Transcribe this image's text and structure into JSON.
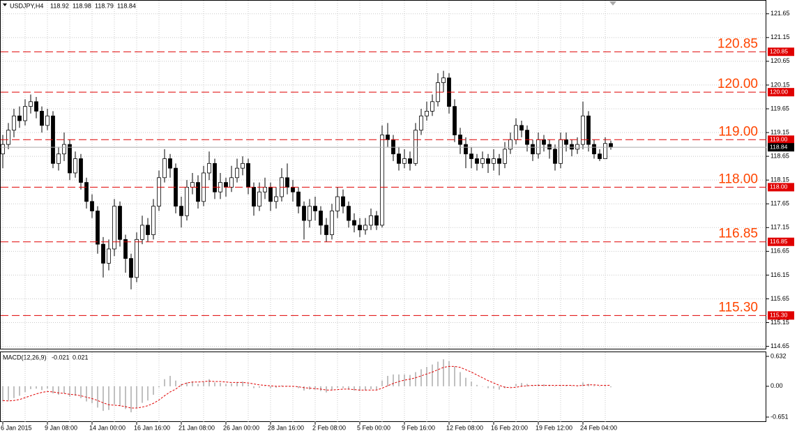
{
  "chart_data": {
    "type": "candlestick",
    "symbol": "USDJPY,H4",
    "categories": [
      "6 Jan 2015",
      null,
      null,
      null,
      null,
      null,
      null,
      null,
      "9 Jan 08:00",
      null,
      null,
      null,
      null,
      null,
      null,
      null,
      "14 Jan 00:00",
      null,
      null,
      null,
      null,
      null,
      null,
      null,
      "16 Jan 16:00",
      null,
      null,
      null,
      null,
      null,
      null,
      null,
      "21 Jan 08:00",
      null,
      null,
      null,
      null,
      null,
      null,
      null,
      "26 Jan 00:00",
      null,
      null,
      null,
      null,
      null,
      null,
      null,
      "28 Jan 16:00",
      null,
      null,
      null,
      null,
      null,
      null,
      null,
      "2 Feb 08:00",
      null,
      null,
      null,
      null,
      null,
      null,
      null,
      "5 Feb 00:00",
      null,
      null,
      null,
      null,
      null,
      null,
      null,
      "9 Feb 16:00",
      null,
      null,
      null,
      null,
      null,
      null,
      null,
      "12 Feb 08:00",
      null,
      null,
      null,
      null,
      null,
      null,
      null,
      "16 Feb 20:00",
      null,
      null,
      null,
      null,
      null,
      null,
      null,
      "19 Feb 12:00",
      null,
      null,
      null,
      null,
      null,
      null,
      null,
      "24 Feb 04:00",
      null,
      null,
      null,
      null,
      null
    ],
    "open": [
      118.7,
      118.9,
      119.2,
      119.5,
      119.4,
      119.7,
      119.8,
      119.6,
      119.3,
      119.5,
      118.5,
      118.7,
      118.9,
      118.3,
      118.6,
      118.1,
      117.7,
      117.5,
      116.8,
      116.4,
      116.7,
      117.6,
      116.9,
      116.5,
      116.1,
      116.9,
      117.2,
      117.0,
      117.6,
      118.2,
      118.6,
      118.4,
      117.6,
      117.4,
      118.0,
      118.1,
      117.7,
      118.3,
      118.5,
      117.9,
      118.1,
      118.0,
      118.2,
      118.4,
      118.5,
      118.0,
      117.6,
      117.9,
      118.0,
      117.7,
      117.8,
      118.2,
      118.0,
      117.9,
      117.6,
      117.3,
      117.6,
      117.5,
      117.2,
      117.0,
      117.5,
      117.8,
      117.6,
      117.3,
      117.2,
      117.1,
      117.2,
      117.4,
      117.2,
      119.1,
      119.0,
      118.7,
      118.5,
      118.6,
      118.5,
      119.2,
      119.5,
      119.6,
      119.8,
      120.2,
      120.3,
      119.7,
      119.1,
      118.9,
      118.7,
      118.6,
      118.5,
      118.6,
      118.5,
      118.6,
      118.5,
      118.8,
      119.0,
      119.3,
      119.2,
      118.9,
      118.7,
      119.0,
      118.9,
      118.8,
      118.5,
      119.0,
      118.9,
      118.8,
      118.9,
      119.5,
      118.9,
      118.7,
      118.6,
      118.92
    ],
    "high": [
      119.1,
      119.35,
      119.65,
      119.7,
      119.85,
      119.95,
      119.9,
      119.7,
      119.65,
      119.6,
      118.85,
      119.15,
      119.0,
      118.75,
      118.7,
      118.2,
      117.85,
      117.6,
      116.95,
      116.9,
      117.75,
      117.7,
      117.0,
      116.6,
      117.05,
      117.4,
      117.35,
      117.75,
      118.35,
      118.8,
      118.7,
      118.5,
      117.8,
      118.15,
      118.3,
      118.25,
      118.45,
      118.75,
      118.6,
      118.3,
      118.2,
      118.45,
      118.6,
      118.65,
      118.6,
      118.1,
      118.1,
      118.2,
      118.1,
      118.0,
      118.4,
      118.5,
      118.15,
      118.0,
      117.7,
      117.75,
      117.8,
      117.6,
      117.35,
      117.65,
      118.0,
      117.95,
      117.7,
      117.45,
      117.35,
      117.35,
      117.55,
      117.5,
      119.3,
      119.35,
      119.1,
      118.85,
      118.8,
      118.75,
      119.35,
      119.65,
      119.8,
      119.95,
      120.4,
      120.45,
      120.4,
      119.85,
      119.25,
      119.05,
      118.85,
      118.7,
      118.75,
      118.7,
      118.8,
      118.7,
      118.95,
      119.15,
      119.45,
      119.4,
      119.3,
      119.0,
      119.15,
      119.1,
      119.0,
      118.9,
      119.15,
      119.15,
      119.0,
      119.05,
      119.8,
      119.6,
      119.0,
      118.8,
      119.05,
      118.98
    ],
    "low": [
      118.4,
      118.8,
      119.05,
      119.25,
      119.3,
      119.55,
      119.45,
      119.15,
      119.2,
      118.4,
      118.35,
      118.55,
      118.15,
      118.2,
      117.95,
      117.55,
      117.35,
      116.6,
      116.1,
      116.25,
      116.55,
      116.75,
      116.2,
      115.85,
      116.0,
      116.8,
      116.85,
      116.9,
      117.5,
      118.1,
      118.2,
      117.45,
      117.15,
      117.3,
      117.85,
      117.55,
      117.6,
      118.15,
      117.75,
      117.75,
      117.8,
      117.9,
      118.1,
      118.25,
      117.85,
      117.4,
      117.5,
      117.75,
      117.5,
      117.55,
      117.7,
      117.85,
      117.7,
      117.45,
      116.9,
      117.15,
      117.3,
      117.0,
      116.85,
      116.9,
      117.35,
      117.45,
      117.15,
      117.05,
      116.95,
      117.0,
      117.1,
      117.1,
      117.15,
      118.85,
      118.55,
      118.35,
      118.4,
      118.35,
      118.45,
      119.1,
      119.4,
      119.5,
      119.7,
      120.0,
      119.55,
      118.95,
      118.7,
      118.4,
      118.4,
      118.35,
      118.4,
      118.3,
      118.35,
      118.25,
      118.4,
      118.7,
      118.9,
      119.05,
      118.75,
      118.55,
      118.6,
      118.75,
      118.6,
      118.35,
      118.4,
      118.75,
      118.65,
      118.7,
      118.8,
      118.75,
      118.6,
      118.55,
      118.6,
      118.79
    ],
    "close": [
      118.9,
      119.2,
      119.5,
      119.4,
      119.7,
      119.8,
      119.6,
      119.3,
      119.5,
      118.5,
      118.7,
      118.9,
      118.3,
      118.6,
      118.1,
      117.7,
      117.5,
      116.8,
      116.4,
      116.7,
      117.6,
      116.9,
      116.5,
      116.1,
      116.9,
      117.2,
      117.0,
      117.6,
      118.2,
      118.6,
      118.4,
      117.6,
      117.4,
      118.0,
      118.1,
      117.7,
      118.3,
      118.5,
      117.9,
      118.1,
      118.0,
      118.2,
      118.4,
      118.5,
      118.0,
      117.6,
      117.9,
      118.0,
      117.7,
      117.8,
      118.2,
      118.0,
      117.9,
      117.6,
      117.3,
      117.6,
      117.5,
      117.2,
      117.0,
      117.5,
      117.8,
      117.6,
      117.3,
      117.2,
      117.1,
      117.2,
      117.4,
      117.2,
      119.1,
      119.0,
      118.7,
      118.5,
      118.6,
      118.5,
      119.2,
      119.5,
      119.6,
      119.8,
      120.2,
      120.3,
      119.7,
      119.1,
      118.9,
      118.7,
      118.6,
      118.5,
      118.6,
      118.5,
      118.6,
      118.5,
      118.8,
      119.0,
      119.3,
      119.2,
      118.9,
      118.7,
      119.0,
      118.9,
      118.8,
      118.5,
      119.0,
      118.9,
      118.8,
      118.9,
      119.5,
      118.9,
      118.7,
      118.6,
      118.92,
      118.84
    ],
    "ylim": [
      114.6,
      121.94
    ],
    "yticks": [
      121.65,
      121.15,
      120.65,
      120.15,
      119.65,
      119.15,
      118.65,
      118.15,
      117.65,
      117.15,
      116.65,
      116.15,
      115.65,
      115.15,
      114.65
    ],
    "levels": [
      {
        "value": 120.85,
        "label": "120.85"
      },
      {
        "value": 120,
        "label": "120.00"
      },
      {
        "value": 119,
        "label": "119.00"
      },
      {
        "value": 118,
        "label": "118.00"
      },
      {
        "value": 116.85,
        "label": "116.85"
      },
      {
        "value": 115.3,
        "label": "115.30"
      }
    ],
    "grid": true,
    "macd": {
      "label": "MACD(12,26,9)",
      "values": [
        -0.32,
        -0.3,
        -0.25,
        -0.2,
        -0.12,
        -0.06,
        -0.05,
        -0.08,
        -0.05,
        -0.15,
        -0.18,
        -0.15,
        -0.22,
        -0.2,
        -0.25,
        -0.32,
        -0.36,
        -0.45,
        -0.52,
        -0.5,
        -0.38,
        -0.42,
        -0.48,
        -0.55,
        -0.45,
        -0.35,
        -0.3,
        -0.18,
        -0.02,
        0.15,
        0.22,
        0.12,
        0.05,
        0.08,
        0.1,
        0.05,
        0.1,
        0.15,
        0.08,
        0.07,
        0.05,
        0.06,
        0.09,
        0.1,
        0.04,
        -0.04,
        -0.03,
        -0.01,
        -0.04,
        -0.03,
        0.02,
        0.01,
        0,
        -0.04,
        -0.09,
        -0.07,
        -0.07,
        -0.1,
        -0.13,
        -0.08,
        -0.03,
        -0.04,
        -0.07,
        -0.09,
        -0.1,
        -0.09,
        -0.06,
        -0.07,
        0.12,
        0.22,
        0.25,
        0.25,
        0.25,
        0.24,
        0.3,
        0.36,
        0.41,
        0.46,
        0.52,
        0.57,
        0.53,
        0.42,
        0.3,
        0.18,
        0.1,
        0.03,
        0,
        -0.04,
        -0.05,
        -0.07,
        -0.04,
        0,
        0.05,
        0.07,
        0.05,
        0.02,
        0.04,
        0.04,
        0.03,
        -0.01,
        0.02,
        0.02,
        0.01,
        0.02,
        0.08,
        0.05,
        0.02,
        -0.01,
        -0.01,
        -0.021
      ],
      "signal": [
        -0.3,
        -0.31,
        -0.3,
        -0.28,
        -0.24,
        -0.2,
        -0.16,
        -0.13,
        -0.11,
        -0.12,
        -0.14,
        -0.15,
        -0.17,
        -0.18,
        -0.2,
        -0.23,
        -0.26,
        -0.3,
        -0.35,
        -0.39,
        -0.4,
        -0.41,
        -0.43,
        -0.46,
        -0.46,
        -0.44,
        -0.41,
        -0.36,
        -0.29,
        -0.2,
        -0.12,
        -0.06,
        0.03,
        0.07,
        0.09,
        0.09,
        0.1,
        0.11,
        0.1,
        0.1,
        0.09,
        0.08,
        0.08,
        0.08,
        0.07,
        0.05,
        0.03,
        0.02,
        0.01,
        0,
        0,
        0,
        0,
        -0.01,
        -0.03,
        -0.04,
        -0.05,
        -0.06,
        -0.08,
        -0.08,
        -0.07,
        -0.06,
        -0.06,
        -0.07,
        -0.08,
        -0.08,
        -0.08,
        -0.08,
        -0.04,
        0.01,
        0.06,
        0.1,
        0.13,
        0.15,
        0.18,
        0.22,
        0.26,
        0.3,
        0.35,
        0.4,
        0.42,
        0.42,
        0.4,
        0.35,
        0.3,
        0.24,
        0.18,
        0.12,
        0.07,
        0.02,
        -0.02,
        -0.03,
        -0.02,
        0,
        0.01,
        0.02,
        0.02,
        0.02,
        0.02,
        0.02,
        0.02,
        0.02,
        0.02,
        0.01,
        0.02,
        0.03,
        0.03,
        0.02,
        0.02,
        0.021
      ],
      "ylim": [
        -0.754,
        0.72
      ],
      "yticks": [
        0.632,
        {
          "value": 0,
          "label": "0.00"
        },
        -0.651
      ]
    }
  }
}
